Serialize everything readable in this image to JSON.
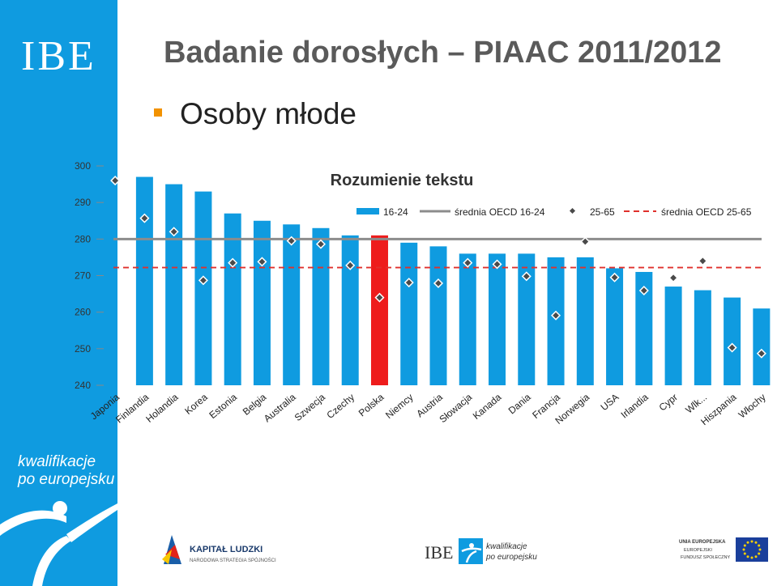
{
  "sidebar": {
    "logo": "IBE",
    "tagline_line1": "kwalifikacje",
    "tagline_line2": "po europejsku"
  },
  "slide": {
    "title": "Badanie dorosłych – PIAAC 2011/2012",
    "subtitle": "Osoby młode"
  },
  "footer": {
    "kl_title": "KAPITAŁ LUDZKI",
    "kl_sub": "NARODOWA STRATEGIA SPÓJNOŚCI",
    "ibe": "IBE",
    "kpe_line1": "kwalifikacje",
    "kpe_line2": "po europejsku",
    "eu_line1": "UNIA EUROPEJSKA",
    "eu_line2": "EUROPEJSKI",
    "eu_line3": "FUNDUSZ SPOŁECZNY"
  },
  "colors": {
    "sidebar": "#0f9be0",
    "bar": "#0f9be0",
    "highlight_bar": "#ee1c1c",
    "mean_16_24": "#8c8c8c",
    "mean_25_65": "#e0302c",
    "marker": "#4a4a4a",
    "bullet": "#f29200"
  },
  "chart_data": {
    "type": "bar",
    "title": "Rozumienie tekstu",
    "ylim": [
      240,
      300
    ],
    "yticks": [
      240,
      250,
      260,
      270,
      280,
      290,
      300
    ],
    "grid": false,
    "legend_position": "top-right",
    "highlight_category": "Polska",
    "categories": [
      "Japonia",
      "Finlandia",
      "Holandia",
      "Korea",
      "Estonia",
      "Belgia",
      "Australia",
      "Szwecja",
      "Czechy",
      "Polska",
      "Niemcy",
      "Austria",
      "Słowacja",
      "Kanada",
      "Dania",
      "Francja",
      "Norwegia",
      "USA",
      "Irlandia",
      "Cypr",
      "Wlk...",
      "Hiszpania",
      "Włochy"
    ],
    "series": [
      {
        "name": "16-24",
        "kind": "bar",
        "values": [
          null,
          297,
          295,
          293,
          287,
          285,
          284,
          283,
          281,
          281,
          279,
          278,
          276,
          276,
          276,
          275,
          275,
          272,
          271,
          267,
          266,
          264,
          261
        ]
      },
      {
        "name": "średnia OECD 16-24",
        "kind": "hline",
        "value": 280
      },
      {
        "name": "25-65",
        "kind": "marker",
        "values": [
          296,
          285.7,
          282,
          268.7,
          273.5,
          273.8,
          279.5,
          278.6,
          272.8,
          264,
          268.1,
          267.9,
          273.5,
          273.1,
          269.8,
          259.1,
          279.3,
          269.5,
          265.9,
          269.4,
          274,
          250.3,
          248.7
        ]
      },
      {
        "name": "średnia OECD 25-65",
        "kind": "hline-dashed",
        "value": 272.2
      }
    ]
  }
}
